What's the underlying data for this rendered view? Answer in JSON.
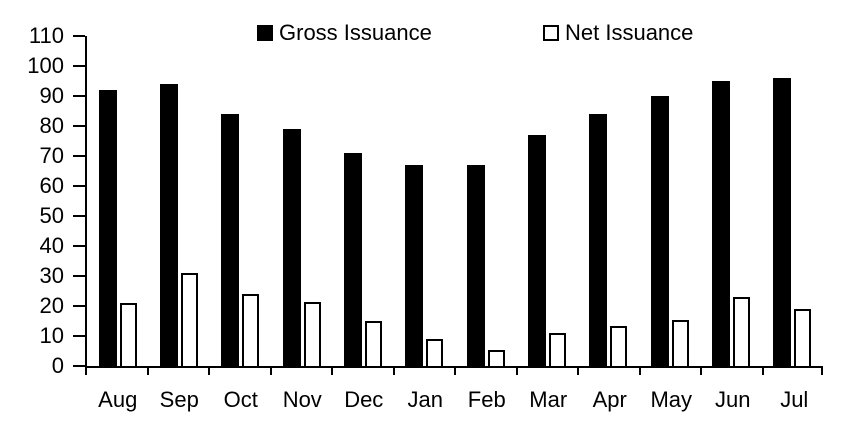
{
  "chart_data": {
    "type": "bar",
    "title": "",
    "xlabel": "",
    "ylabel": "",
    "categories": [
      "Aug",
      "Sep",
      "Oct",
      "Nov",
      "Dec",
      "Jan",
      "Feb",
      "Mar",
      "Apr",
      "May",
      "Jun",
      "Jul"
    ],
    "series": [
      {
        "name": "Gross Issuance",
        "style": "filled",
        "fill_color": "#000000",
        "values": [
          92,
          94,
          84,
          79,
          71,
          67,
          67,
          77,
          84,
          90,
          95,
          96
        ]
      },
      {
        "name": "Net Issuance",
        "style": "outlined",
        "fill_color": "#ffffff",
        "border_color": "#000000",
        "values": [
          21,
          31,
          24,
          21.5,
          15,
          9,
          5.5,
          11,
          13.5,
          15.5,
          23,
          19
        ]
      }
    ],
    "ylim": [
      0,
      110
    ],
    "yticks": [
      0,
      10,
      20,
      30,
      40,
      50,
      60,
      70,
      80,
      90,
      100,
      110
    ],
    "grid": false,
    "legend_position": "top",
    "axis_color": "#000000",
    "background_color": "#ffffff"
  }
}
